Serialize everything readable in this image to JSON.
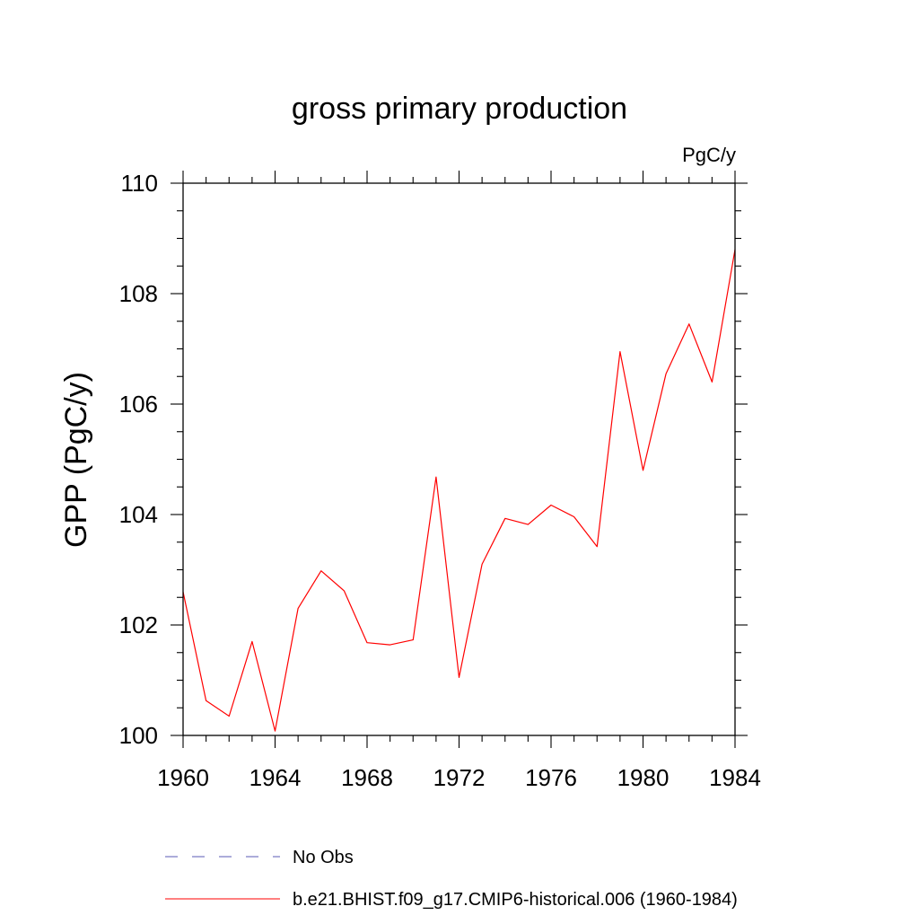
{
  "chart_data": {
    "type": "line",
    "title": "gross primary production",
    "units": "PgC/y",
    "ylabel": "GPP  (PgC/y)",
    "xlabel": "",
    "xlim": [
      1960,
      1984
    ],
    "ylim": [
      100,
      110
    ],
    "x_major_ticks": [
      1960,
      1964,
      1968,
      1972,
      1976,
      1980,
      1984
    ],
    "x_minor_ticks": [
      1961,
      1962,
      1963,
      1965,
      1966,
      1967,
      1969,
      1970,
      1971,
      1973,
      1974,
      1975,
      1977,
      1978,
      1979,
      1981,
      1982,
      1983
    ],
    "y_major_ticks": [
      100,
      102,
      104,
      106,
      108,
      110
    ],
    "y_minor_step": 0.5,
    "grid": false,
    "legend_position": "bottom-center",
    "series": [
      {
        "name": "b.e21.BHIST.f09_g17.CMIP6-historical.006 (1960-1984)",
        "color": "#ff0000",
        "line_style": "solid",
        "x": [
          1960,
          1961,
          1962,
          1963,
          1964,
          1965,
          1966,
          1967,
          1968,
          1969,
          1970,
          1971,
          1972,
          1973,
          1974,
          1975,
          1976,
          1977,
          1978,
          1979,
          1980,
          1981,
          1982,
          1983,
          1984
        ],
        "values": [
          102.6,
          100.63,
          100.35,
          101.7,
          100.08,
          102.3,
          102.98,
          102.62,
          101.68,
          101.64,
          101.73,
          104.68,
          101.05,
          103.1,
          103.93,
          103.82,
          104.17,
          103.96,
          103.42,
          106.95,
          104.8,
          106.55,
          107.45,
          106.4,
          108.8
        ]
      },
      {
        "name": "No Obs",
        "color": "#5a5ab4",
        "line_style": "dashed",
        "x": [],
        "values": []
      }
    ]
  }
}
